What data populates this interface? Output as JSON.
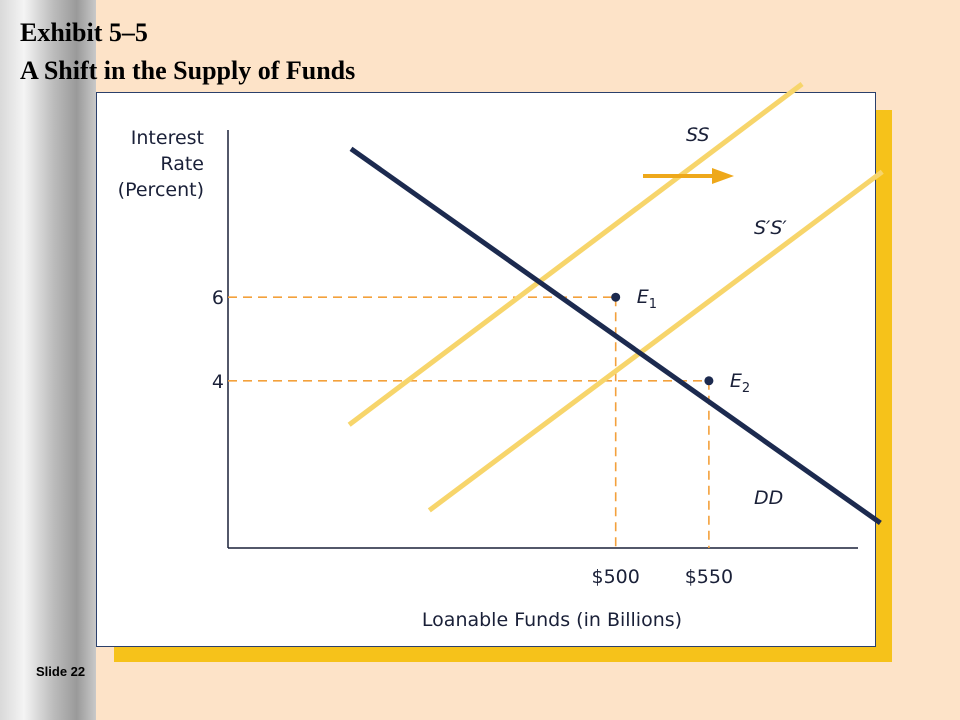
{
  "title_line1": "Exhibit 5–5",
  "title_line2": "A Shift in the Supply of Funds",
  "slide_number": "Slide 22",
  "colors": {
    "background": "#fde3c8",
    "supply": "#f7d56b",
    "demand": "#1c2a4f",
    "dashes": "#f3a13c",
    "arrow": "#eea81a",
    "shadow": "#f6c21a"
  },
  "chart_data": {
    "type": "line",
    "ylabel_lines": [
      "Interest",
      "Rate",
      "(Percent)"
    ],
    "xlabel": "Loanable Funds (in Billions)",
    "y_ticks": [
      {
        "value": 6,
        "label": "6"
      },
      {
        "value": 4,
        "label": "4"
      }
    ],
    "x_ticks": [
      {
        "value": 500,
        "label": "$500"
      },
      {
        "value": 550,
        "label": "$550"
      }
    ],
    "xlim": [
      292,
      630
    ],
    "ylim": [
      0,
      10
    ],
    "series": [
      {
        "name": "SS",
        "x": [
          357,
          600
        ],
        "y": [
          2.95,
          11.1
        ]
      },
      {
        "name": "S′S′",
        "x": [
          400,
          643
        ],
        "y": [
          0.9,
          9.0
        ]
      },
      {
        "name": "DD",
        "x": [
          358,
          642
        ],
        "y": [
          9.55,
          0.6
        ]
      }
    ],
    "points": [
      {
        "name": "E1",
        "label": "E",
        "sub": "1",
        "x": 500,
        "y": 6
      },
      {
        "name": "E2",
        "label": "E",
        "sub": "2",
        "x": 550,
        "y": 4
      }
    ],
    "shift_arrow": "right"
  }
}
